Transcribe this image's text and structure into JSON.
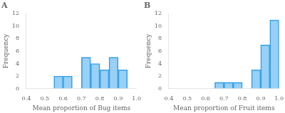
{
  "chart_data": [
    {
      "type": "histogram",
      "title": "A",
      "xlabel": "Mean proportion of Bug items",
      "ylabel": "Frequency",
      "bins": [
        0.55,
        0.6,
        0.65,
        0.7,
        0.75,
        0.8,
        0.85,
        0.9,
        0.95,
        1.0
      ],
      "values": [
        2,
        2,
        0,
        5,
        4,
        3,
        5,
        3,
        0
      ],
      "xlim": [
        0.4,
        1.0
      ],
      "ylim": [
        0,
        12
      ],
      "xticks": [
        0.4,
        0.5,
        0.6,
        0.7,
        0.8,
        0.9,
        {
          "value": 1.0,
          "label": "1.0"
        }
      ],
      "yticks": [
        0,
        2,
        4,
        6,
        8,
        10,
        12
      ],
      "grid": false
    },
    {
      "type": "histogram",
      "title": "B",
      "xlabel": "Mean proportion of Fruit items",
      "ylabel": "Frequency",
      "bins": [
        0.65,
        0.7,
        0.75,
        0.8,
        0.85,
        0.9,
        0.95,
        1.0
      ],
      "values": [
        1,
        1,
        1,
        0,
        3,
        7,
        11
      ],
      "xlim": [
        0.4,
        1.0
      ],
      "ylim": [
        0,
        12
      ],
      "xticks": [
        0.4,
        0.5,
        0.6,
        0.7,
        0.8,
        0.9,
        {
          "value": 1.0,
          "label": "1.0"
        }
      ],
      "yticks": [
        0,
        2,
        4,
        6,
        8,
        10,
        12
      ],
      "grid": false
    }
  ]
}
